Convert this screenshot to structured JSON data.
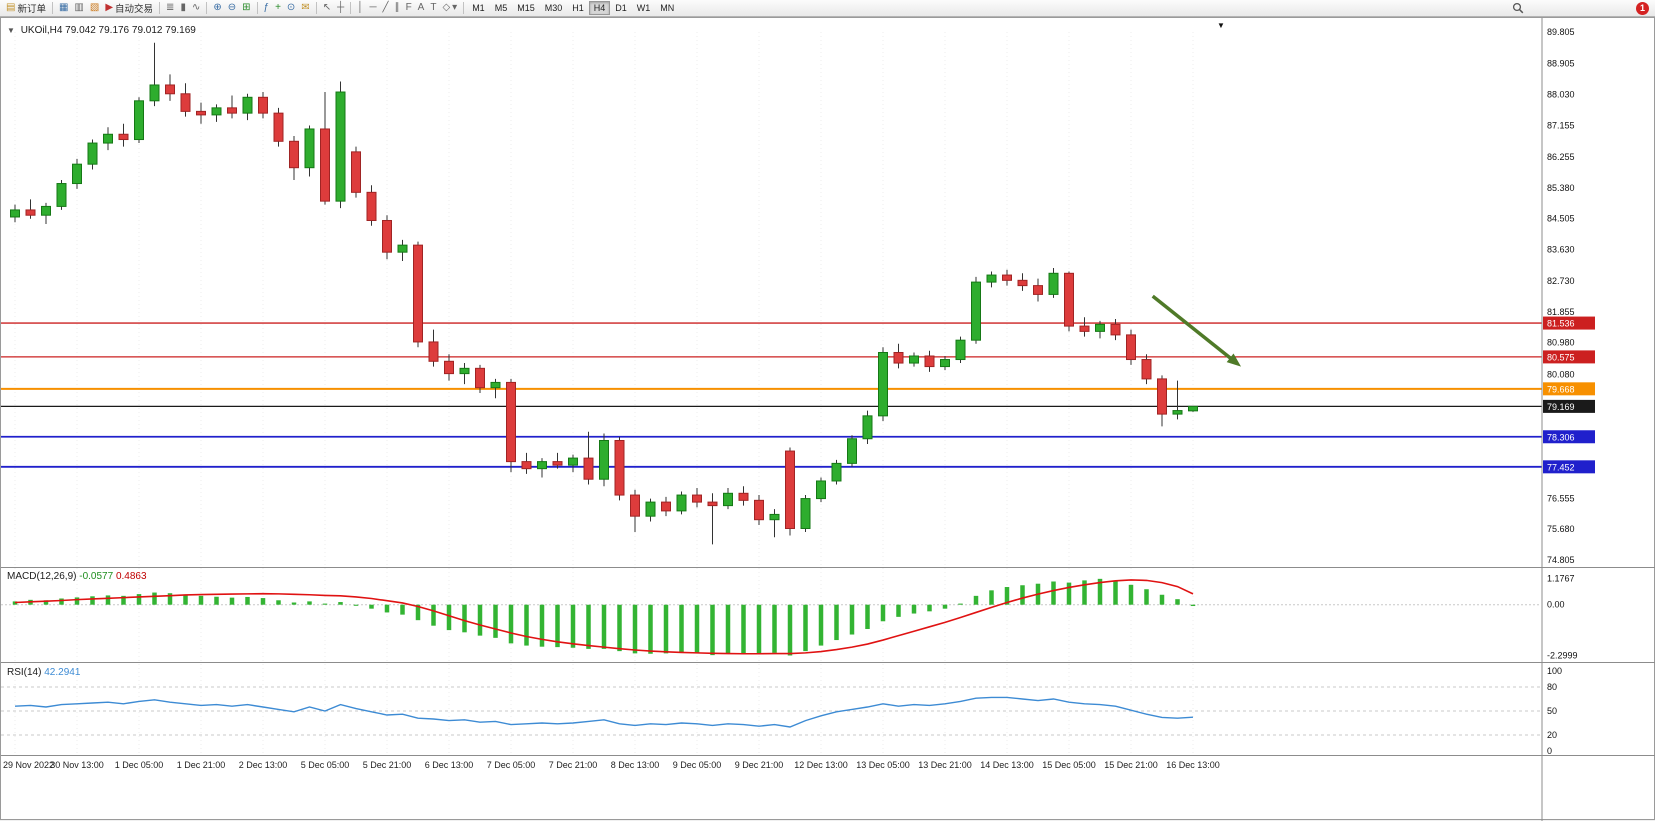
{
  "toolbar": {
    "new_order_label": "新订单",
    "auto_trading_label": "自动交易",
    "badge_count": "1",
    "icons": {
      "new_order": "▤",
      "charts": "▦",
      "market_watch": "▥",
      "navigator": "▧",
      "auto_play": "▶",
      "bar_chart": "≣",
      "candlestick": "▮",
      "line_chart": "∿",
      "zoom_in": "⊕",
      "zoom_out": "⊖",
      "tile_windows": "⊞",
      "indicators": "ƒ",
      "add_indicator": "+",
      "periods": "⊙",
      "mail": "✉",
      "cursor": "↖",
      "crosshair": "┼",
      "vertical_line": "│",
      "horizontal_line": "─",
      "trendline": "╱",
      "channel": "∥",
      "fibonacci": "F",
      "text": "A",
      "label": "T",
      "shapes": "◇",
      "dropdown": "▾"
    },
    "timeframes": [
      "M1",
      "M5",
      "M15",
      "M30",
      "H1",
      "H4",
      "D1",
      "W1",
      "MN"
    ],
    "active_timeframe": "H4"
  },
  "chart": {
    "collapse_icon": "▼",
    "marker_icon": "▼",
    "symbol_period": "UKOil,H4",
    "ohlc": "79.042 79.176 79.012 79.169"
  },
  "macd": {
    "name": "MACD(12,26,9)",
    "main_value": "-0.0577",
    "signal_value": "0.4863"
  },
  "rsi": {
    "name": "RSI(14)",
    "value": "42.2941"
  },
  "chart_data": {
    "type": "candlestick",
    "symbol": "UKOil",
    "timeframe": "H4",
    "label_every_n_candles": 4,
    "colors": {
      "up": "#2EAD2E",
      "up_edge": "#157815",
      "down": "#DD3C3C",
      "down_edge": "#A02424",
      "wick": "#333333",
      "macd_hist": "#33B433",
      "macd_signal": "#E01212",
      "rsi_line": "#3D8BD4"
    },
    "price_axis_ticks": [
      "89.805",
      "88.905",
      "88.030",
      "87.155",
      "86.255",
      "85.380",
      "84.505",
      "83.630",
      "82.730",
      "81.855",
      "80.980",
      "80.080",
      "79.205",
      "78.330",
      "77.455",
      "76.555",
      "75.680",
      "74.805"
    ],
    "time_labels": [
      "29 Nov 2022",
      "30 Nov 13:00",
      "1 Dec 05:00",
      "1 Dec 21:00",
      "2 Dec 13:00",
      "5 Dec 05:00",
      "5 Dec 21:00",
      "6 Dec 13:00",
      "7 Dec 05:00",
      "7 Dec 21:00",
      "8 Dec 13:00",
      "9 Dec 05:00",
      "9 Dec 21:00",
      "12 Dec 13:00",
      "13 Dec 05:00",
      "13 Dec 21:00",
      "14 Dec 13:00",
      "15 Dec 05:00",
      "15 Dec 21:00",
      "16 Dec 13:00"
    ],
    "levels": [
      {
        "price": 81.536,
        "label": "81.536",
        "color": "#CC2020",
        "width": 1.3
      },
      {
        "price": 80.575,
        "label": "80.575",
        "color": "#CC2020",
        "width": 1.3
      },
      {
        "price": 79.668,
        "label": "79.668",
        "color": "#F79000",
        "width": 2
      },
      {
        "price": 79.169,
        "label": "79.169",
        "color": "#1A1A1A",
        "width": 1.3,
        "current": true
      },
      {
        "price": 78.306,
        "label": "78.306",
        "color": "#2020CC",
        "width": 1.8
      },
      {
        "price": 77.452,
        "label": "77.452",
        "color": "#2020CC",
        "width": 1.8
      }
    ],
    "arrow": {
      "from_index": 73.4,
      "from_price": 82.3,
      "to_index": 79.1,
      "to_price": 80.3,
      "color": "#4F7A28"
    },
    "candles": [
      [
        84.55,
        84.9,
        84.4,
        84.75
      ],
      [
        84.75,
        85.05,
        84.5,
        84.6
      ],
      [
        84.6,
        84.95,
        84.35,
        84.85
      ],
      [
        84.85,
        85.6,
        84.75,
        85.5
      ],
      [
        85.5,
        86.2,
        85.35,
        86.05
      ],
      [
        86.05,
        86.75,
        85.9,
        86.65
      ],
      [
        86.65,
        87.1,
        86.45,
        86.9
      ],
      [
        86.9,
        87.2,
        86.55,
        86.75
      ],
      [
        86.75,
        87.95,
        86.65,
        87.85
      ],
      [
        87.85,
        89.5,
        87.7,
        88.3
      ],
      [
        88.3,
        88.6,
        87.85,
        88.05
      ],
      [
        88.05,
        88.35,
        87.4,
        87.55
      ],
      [
        87.55,
        87.8,
        87.2,
        87.45
      ],
      [
        87.45,
        87.75,
        87.25,
        87.65
      ],
      [
        87.65,
        88.0,
        87.35,
        87.5
      ],
      [
        87.5,
        88.05,
        87.3,
        87.95
      ],
      [
        87.95,
        88.1,
        87.35,
        87.5
      ],
      [
        87.5,
        87.65,
        86.55,
        86.7
      ],
      [
        86.7,
        86.85,
        85.6,
        85.95
      ],
      [
        85.95,
        87.15,
        85.7,
        87.05
      ],
      [
        87.05,
        88.1,
        84.9,
        85.0
      ],
      [
        85.0,
        88.4,
        84.8,
        88.1
      ],
      [
        86.4,
        86.55,
        85.1,
        85.25
      ],
      [
        85.25,
        85.45,
        84.3,
        84.45
      ],
      [
        84.45,
        84.6,
        83.35,
        83.55
      ],
      [
        83.55,
        83.9,
        83.3,
        83.75
      ],
      [
        83.75,
        83.85,
        80.85,
        81.0
      ],
      [
        81.0,
        81.35,
        80.3,
        80.45
      ],
      [
        80.45,
        80.65,
        79.9,
        80.1
      ],
      [
        80.1,
        80.4,
        79.8,
        80.25
      ],
      [
        80.25,
        80.35,
        79.55,
        79.7
      ],
      [
        79.7,
        79.95,
        79.4,
        79.85
      ],
      [
        79.85,
        79.95,
        77.3,
        77.6
      ],
      [
        77.6,
        77.85,
        77.25,
        77.4
      ],
      [
        77.4,
        77.7,
        77.15,
        77.6
      ],
      [
        77.6,
        77.85,
        77.4,
        77.5
      ],
      [
        77.5,
        77.8,
        77.3,
        77.7
      ],
      [
        77.7,
        78.45,
        76.95,
        77.1
      ],
      [
        77.1,
        78.4,
        76.9,
        78.2
      ],
      [
        78.2,
        78.3,
        76.5,
        76.65
      ],
      [
        76.65,
        76.8,
        75.6,
        76.05
      ],
      [
        76.05,
        76.55,
        75.9,
        76.45
      ],
      [
        76.45,
        76.6,
        76.05,
        76.2
      ],
      [
        76.2,
        76.75,
        76.1,
        76.65
      ],
      [
        76.65,
        76.85,
        76.3,
        76.45
      ],
      [
        76.45,
        76.7,
        75.25,
        76.35
      ],
      [
        76.35,
        76.85,
        76.25,
        76.7
      ],
      [
        76.7,
        76.9,
        76.35,
        76.5
      ],
      [
        76.5,
        76.65,
        75.8,
        75.95
      ],
      [
        75.95,
        76.25,
        75.45,
        76.1
      ],
      [
        77.9,
        78.0,
        75.5,
        75.7
      ],
      [
        75.7,
        76.65,
        75.6,
        76.55
      ],
      [
        76.55,
        77.15,
        76.45,
        77.05
      ],
      [
        77.05,
        77.65,
        76.95,
        77.55
      ],
      [
        77.55,
        78.35,
        77.45,
        78.25
      ],
      [
        78.25,
        79.05,
        78.1,
        78.9
      ],
      [
        78.9,
        80.85,
        78.75,
        80.7
      ],
      [
        80.7,
        80.95,
        80.25,
        80.4
      ],
      [
        80.4,
        80.7,
        80.3,
        80.6
      ],
      [
        80.6,
        80.75,
        80.15,
        80.3
      ],
      [
        80.3,
        80.6,
        80.2,
        80.5
      ],
      [
        80.5,
        81.15,
        80.4,
        81.05
      ],
      [
        81.05,
        82.85,
        80.95,
        82.7
      ],
      [
        82.7,
        83.0,
        82.55,
        82.9
      ],
      [
        82.9,
        83.05,
        82.6,
        82.75
      ],
      [
        82.75,
        82.95,
        82.45,
        82.6
      ],
      [
        82.6,
        82.8,
        82.15,
        82.35
      ],
      [
        82.35,
        83.1,
        82.25,
        82.95
      ],
      [
        82.95,
        83.0,
        81.3,
        81.45
      ],
      [
        81.45,
        81.7,
        81.15,
        81.3
      ],
      [
        81.3,
        81.6,
        81.1,
        81.5
      ],
      [
        81.5,
        81.65,
        81.05,
        81.2
      ],
      [
        81.2,
        81.35,
        80.35,
        80.5
      ],
      [
        80.5,
        80.65,
        79.8,
        79.95
      ],
      [
        79.95,
        80.05,
        78.6,
        78.95
      ],
      [
        78.95,
        79.9,
        78.8,
        79.05
      ],
      [
        79.042,
        79.176,
        79.012,
        79.169
      ]
    ],
    "macd": {
      "params": "12,26,9",
      "axis_ticks": [
        "1.1767",
        "0.00",
        "-2.2999"
      ],
      "histogram": [
        0.15,
        0.22,
        0.2,
        0.28,
        0.33,
        0.38,
        0.42,
        0.4,
        0.48,
        0.55,
        0.52,
        0.46,
        0.4,
        0.36,
        0.32,
        0.35,
        0.3,
        0.2,
        0.1,
        0.15,
        0.05,
        0.12,
        -0.05,
        -0.18,
        -0.35,
        -0.45,
        -0.7,
        -0.95,
        -1.15,
        -1.25,
        -1.4,
        -1.5,
        -1.75,
        -1.85,
        -1.9,
        -1.92,
        -1.95,
        -2.0,
        -2.0,
        -2.1,
        -2.2,
        -2.22,
        -2.2,
        -2.18,
        -2.2,
        -2.28,
        -2.22,
        -2.2,
        -2.25,
        -2.18,
        -2.3,
        -2.1,
        -1.85,
        -1.6,
        -1.35,
        -1.1,
        -0.75,
        -0.55,
        -0.4,
        -0.3,
        -0.18,
        0.05,
        0.4,
        0.65,
        0.8,
        0.88,
        0.95,
        1.05,
        1.0,
        1.1,
        1.17,
        1.05,
        0.9,
        0.7,
        0.45,
        0.25,
        -0.06
      ],
      "signal": [
        0.1,
        0.13,
        0.16,
        0.19,
        0.23,
        0.26,
        0.29,
        0.32,
        0.35,
        0.38,
        0.41,
        0.44,
        0.46,
        0.47,
        0.48,
        0.49,
        0.5,
        0.49,
        0.47,
        0.45,
        0.42,
        0.4,
        0.35,
        0.28,
        0.18,
        0.08,
        -0.08,
        -0.28,
        -0.5,
        -0.72,
        -0.92,
        -1.1,
        -1.28,
        -1.44,
        -1.57,
        -1.68,
        -1.77,
        -1.85,
        -1.92,
        -1.99,
        -2.05,
        -2.1,
        -2.13,
        -2.16,
        -2.18,
        -2.2,
        -2.21,
        -2.22,
        -2.22,
        -2.21,
        -2.21,
        -2.18,
        -2.12,
        -2.03,
        -1.92,
        -1.78,
        -1.6,
        -1.4,
        -1.2,
        -1.0,
        -0.8,
        -0.58,
        -0.35,
        -0.12,
        0.1,
        0.3,
        0.48,
        0.64,
        0.78,
        0.9,
        1.0,
        1.08,
        1.12,
        1.1,
        1.0,
        0.82,
        0.49
      ]
    },
    "rsi_series": {
      "period": 14,
      "axis_ticks": [
        "100",
        "80",
        "50",
        "20",
        "0"
      ],
      "levels": [
        80,
        50,
        20
      ],
      "values": [
        56,
        57,
        55,
        58,
        59,
        60,
        61,
        59,
        62,
        64,
        61,
        59,
        57,
        58,
        56,
        58,
        55,
        52,
        49,
        55,
        50,
        58,
        53,
        49,
        45,
        46,
        41,
        40,
        38,
        39,
        36,
        37,
        33,
        34,
        35,
        34,
        35,
        37,
        39,
        34,
        32,
        34,
        33,
        35,
        34,
        32,
        34,
        33,
        31,
        33,
        30,
        38,
        44,
        49,
        52,
        55,
        59,
        56,
        58,
        57,
        59,
        62,
        66,
        67,
        67,
        65,
        63,
        65,
        61,
        59,
        58,
        56,
        51,
        46,
        42,
        41,
        42.3
      ]
    }
  }
}
